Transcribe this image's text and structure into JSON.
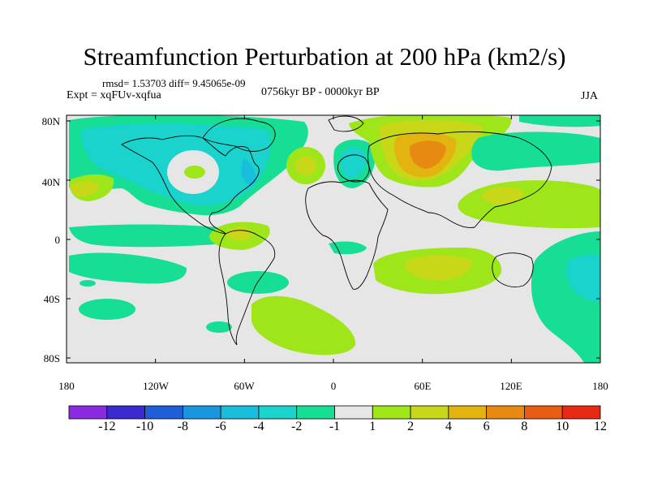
{
  "title": "Streamfunction Perturbation at 200 hPa (km2/s)",
  "rmsd_text": "rmsd= 1.53703 diff= 9.45065e-09",
  "experiment": "Expt = xqFUv-xqfua",
  "period": "0756kyr BP - 0000kyr BP",
  "season": "JJA",
  "lat_labels": [
    "80N",
    "40N",
    "0",
    "40S",
    "80S"
  ],
  "lon_labels": [
    "180",
    "120W",
    "60W",
    "0",
    "60E",
    "120E",
    "180"
  ],
  "colorbar": {
    "labels": [
      "-12",
      "-10",
      "-8",
      "-6",
      "-4",
      "-2",
      "-1",
      "1",
      "2",
      "4",
      "6",
      "8",
      "10",
      "12"
    ],
    "colors": [
      "#8a2be2",
      "#3a2ad0",
      "#1e5fd8",
      "#1a96e0",
      "#18bedb",
      "#1ad3cc",
      "#16df95",
      "#e6e6e6",
      "#9ee61a",
      "#c8d818",
      "#e3b410",
      "#e88a12",
      "#e85c14",
      "#e82a14"
    ]
  },
  "fill_colors": {
    "background": "#e6e6e6",
    "neg1": "#16df95",
    "neg2": "#1ad3cc",
    "neg3": "#18bedb",
    "pos1": "#9ee61a",
    "pos2": "#c8d818",
    "pos3": "#e3b410",
    "pos4": "#e88a12"
  }
}
